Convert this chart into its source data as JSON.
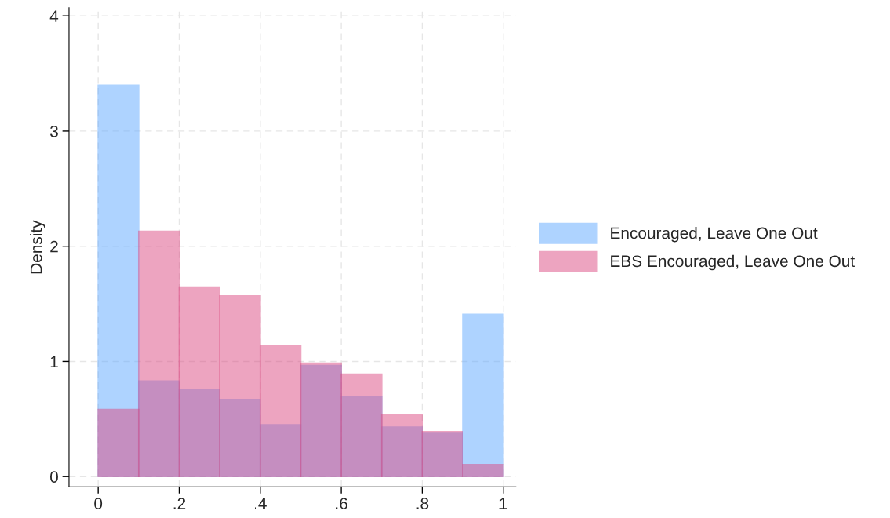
{
  "chart_data": {
    "type": "histogram",
    "ylabel": "Density",
    "bins": [
      0,
      0.1,
      0.2,
      0.3,
      0.4,
      0.5,
      0.6,
      0.7,
      0.8,
      0.9,
      1
    ],
    "series": [
      {
        "name": "Encouraged, Leave One Out",
        "color": "#5fa8ff",
        "values": [
          3.4,
          0.83,
          0.755,
          0.67,
          0.45,
          0.965,
          0.69,
          0.43,
          0.375,
          1.41
        ]
      },
      {
        "name": "EBS Encouraged, Leave One Out",
        "color": "#dc4b82",
        "values": [
          0.584,
          2.13,
          1.64,
          1.57,
          1.14,
          0.985,
          0.89,
          0.535,
          0.39,
          0.105
        ]
      }
    ],
    "xlim": [
      -0.072,
      1.031
    ],
    "ylim": [
      -0.09,
      4.07
    ],
    "xticks": [
      0,
      {
        "value": 0.2,
        "label": ".2"
      },
      {
        "value": 0.4,
        "label": ".4"
      },
      {
        "value": 0.6,
        "label": ".6"
      },
      {
        "value": 0.8,
        "label": ".8"
      },
      1
    ],
    "yticks": [
      0,
      1,
      2,
      3,
      4
    ],
    "grid": true,
    "legend": "right"
  }
}
